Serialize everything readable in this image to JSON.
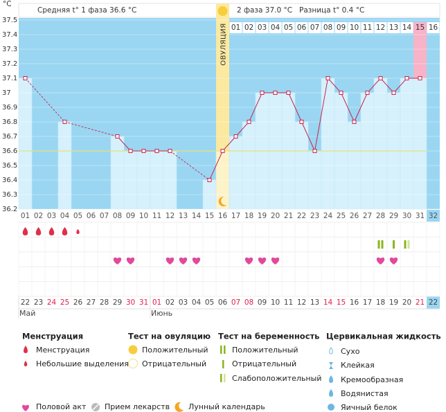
{
  "header": {
    "phase1": "Средняя t° 1 фаза 36.6 °C",
    "phase2": "2 фаза 37.0 °C",
    "difference": "Разница t° 0.4 °C"
  },
  "chart_data": {
    "type": "line",
    "y_unit": "°C",
    "ylim": [
      36.2,
      37.5
    ],
    "yticks": [
      37.5,
      37.4,
      37.3,
      37.2,
      37.1,
      37,
      36.9,
      36.8,
      36.7,
      36.6,
      36.5,
      36.4,
      36.3,
      36.2
    ],
    "categories": [
      "01",
      "02",
      "03",
      "04",
      "05",
      "06",
      "07",
      "08",
      "09",
      "10",
      "11",
      "12",
      "13",
      "14",
      "15",
      "16",
      "17",
      "18",
      "19",
      "20",
      "21",
      "22",
      "23",
      "24",
      "25",
      "26",
      "27",
      "28",
      "29",
      "30",
      "31",
      "32"
    ],
    "values": [
      37.1,
      null,
      null,
      36.8,
      null,
      null,
      null,
      36.7,
      36.6,
      36.6,
      36.6,
      36.6,
      null,
      null,
      36.4,
      36.6,
      36.7,
      36.8,
      37.0,
      37.0,
      37.0,
      36.8,
      36.6,
      37.1,
      37.0,
      36.8,
      37.0,
      37.1,
      37.0,
      37.1,
      37.1,
      null
    ],
    "color": "#c8234e",
    "coverline": 36.6,
    "coverline_color": "#e6e27a",
    "grid": true,
    "ovulation_day": "16",
    "ovulation_label": "ОВУЛЯЦИЯ",
    "phase2_days": [
      "01",
      "02",
      "03",
      "04",
      "05",
      "06",
      "07",
      "08",
      "09",
      "10",
      "11",
      "12",
      "13",
      "14",
      "15",
      "16"
    ],
    "phase2_highlight": "15",
    "dates": [
      "22",
      "23",
      "24",
      "25",
      "26",
      "27",
      "28",
      "29",
      "30",
      "31",
      "01",
      "02",
      "03",
      "04",
      "05",
      "06",
      "07",
      "08",
      "09",
      "10",
      "11",
      "12",
      "13",
      "14",
      "15",
      "16",
      "17",
      "18",
      "19",
      "20",
      "21",
      "22"
    ],
    "holiday_columns": [
      2,
      3,
      8,
      9,
      10,
      16,
      17,
      23,
      24,
      30
    ],
    "today_column": 31,
    "months": [
      "Май",
      "Июнь"
    ],
    "menstruation": [
      0,
      1,
      2,
      3
    ],
    "spotting": [
      4
    ],
    "intercourse": [
      7,
      8,
      11,
      12,
      13,
      17,
      18,
      19,
      27,
      28
    ],
    "pregnancy_tests": {
      "positive": [
        27
      ],
      "negative": [
        28
      ],
      "weak_positive": [
        29
      ]
    }
  },
  "legend": {
    "menstruation": {
      "title": "Менструация",
      "items": [
        "Менструация",
        "Небольшие выделения"
      ]
    },
    "ovulation_test": {
      "title": "Тест на овуляцию",
      "items": [
        "Положительный",
        "Отрицательный"
      ]
    },
    "pregnancy_test": {
      "title": "Тест на беременность",
      "items": [
        "Положительный",
        "Отрицательный",
        "Слабоположительный"
      ]
    },
    "cervical_fluid": {
      "title": "Цервикальная жидкость",
      "items": [
        "Сухо",
        "Клейкая",
        "Кремообразная",
        "Водянистая",
        "Яичный белок"
      ]
    },
    "other": [
      "Половой акт",
      "Прием лекарств",
      "Лунный календарь"
    ]
  }
}
